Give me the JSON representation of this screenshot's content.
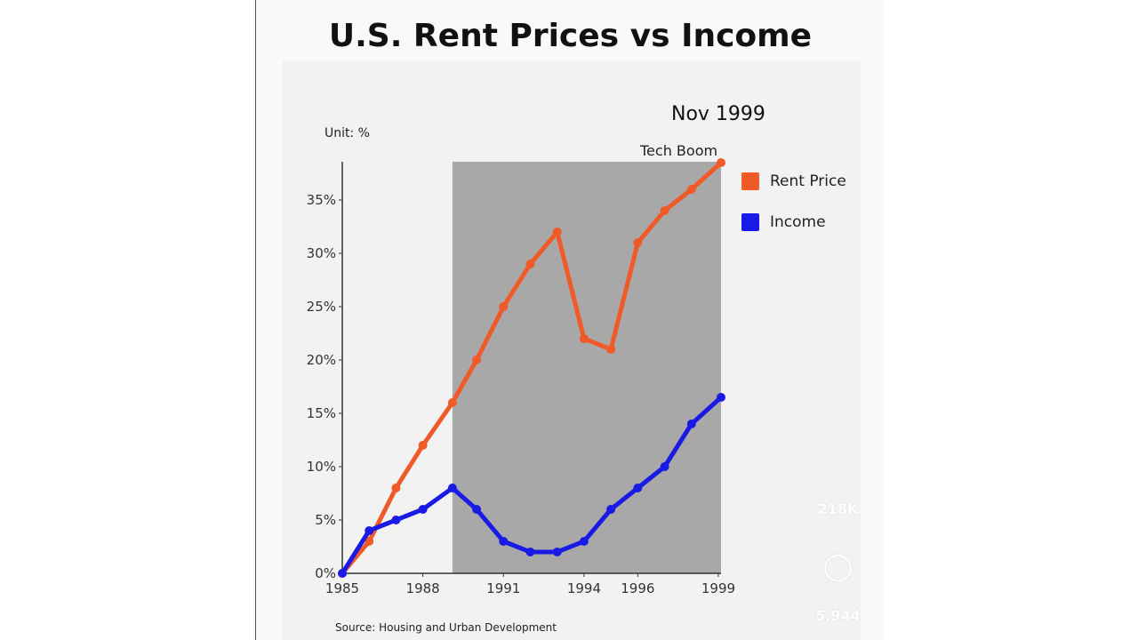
{
  "chart_data": {
    "type": "line",
    "title": "U.S. Rent Prices vs Income",
    "subtitle": "Nov 1999",
    "unit_label": "Unit: %",
    "annotation": "Tech Boom",
    "annotation_range": [
      1989.1,
      1999.1
    ],
    "source": "Source: Housing and Urban Development",
    "x": [
      1985,
      1986,
      1987,
      1988,
      1989.1,
      1990,
      1991,
      1992,
      1993,
      1994,
      1995,
      1996,
      1997,
      1998,
      1999.1
    ],
    "x_ticks": [
      1985,
      1988,
      1991,
      1994,
      1996,
      1999
    ],
    "x_tick_labels": [
      "1985",
      "1988",
      "1991",
      "1994",
      "1996",
      "1999"
    ],
    "y_ticks": [
      0,
      5,
      10,
      15,
      20,
      25,
      30,
      35
    ],
    "y_tick_labels": [
      "0%",
      "5%",
      "10%",
      "15%",
      "20%",
      "25%",
      "30%",
      "35%"
    ],
    "ylim": [
      0,
      38.5
    ],
    "xlim": [
      1985,
      1999.1
    ],
    "legend_position": "right",
    "series": [
      {
        "name": "Rent Price",
        "color": "#f05a28",
        "values": [
          0,
          3,
          8,
          12,
          16,
          20,
          25,
          29,
          32,
          22,
          21,
          31,
          34,
          36,
          38.5
        ]
      },
      {
        "name": "Income",
        "color": "#1a1ae6",
        "values": [
          0,
          4,
          5,
          6,
          8,
          6,
          3,
          2,
          2,
          3,
          6,
          8,
          10,
          14,
          16.5
        ]
      }
    ]
  },
  "overlay": {
    "likes": "218K",
    "comments": "5,944"
  }
}
